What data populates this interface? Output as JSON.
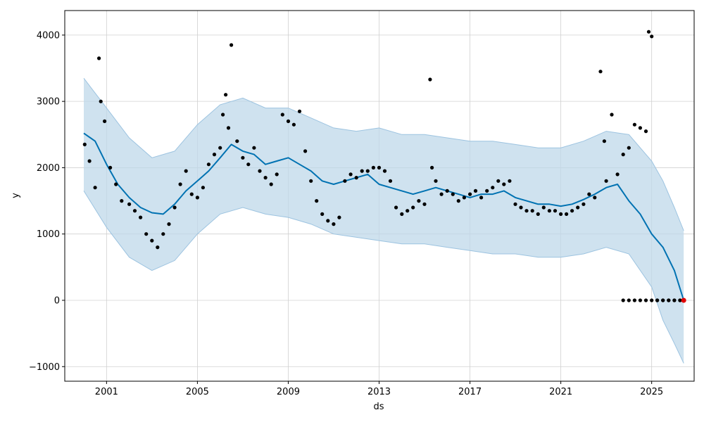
{
  "chart_data": {
    "type": "scatter",
    "title": "",
    "xlabel": "ds",
    "ylabel": "y",
    "xlim": [
      "1999-03-01",
      "2026-11-15"
    ],
    "ylim": [
      -1220,
      4370
    ],
    "grid": true,
    "x_ticks": [
      "2001",
      "2005",
      "2009",
      "2013",
      "2017",
      "2021",
      "2025"
    ],
    "y_ticks": [
      -1000,
      0,
      1000,
      2000,
      3000,
      4000
    ],
    "y_tick_labels": [
      "−1000",
      "0",
      "1000",
      "2000",
      "3000",
      "4000"
    ],
    "colors": {
      "observed": "#000000",
      "forecast": "#0072B2",
      "interval_fill": "#BFD8EA",
      "interval_edge": "#9CC3E0",
      "highlight": "#E00000"
    },
    "series": [
      {
        "kind": "forecast_line",
        "x": [
          "2000-01-01",
          "2000-07-01",
          "2001-01-01",
          "2001-07-01",
          "2002-01-01",
          "2002-07-01",
          "2003-01-01",
          "2003-07-01",
          "2004-01-01",
          "2004-07-01",
          "2005-01-01",
          "2005-07-01",
          "2006-01-01",
          "2006-07-01",
          "2007-01-01",
          "2007-07-01",
          "2008-01-01",
          "2008-07-01",
          "2009-01-01",
          "2009-07-01",
          "2010-01-01",
          "2010-07-01",
          "2011-01-01",
          "2011-07-01",
          "2012-01-01",
          "2012-07-01",
          "2013-01-01",
          "2013-07-01",
          "2014-01-01",
          "2014-07-01",
          "2015-01-01",
          "2015-07-01",
          "2016-01-01",
          "2016-07-01",
          "2017-01-01",
          "2017-07-01",
          "2018-01-01",
          "2018-07-01",
          "2019-01-01",
          "2019-07-01",
          "2020-01-01",
          "2020-07-01",
          "2021-01-01",
          "2021-07-01",
          "2022-01-01",
          "2022-07-01",
          "2023-01-01",
          "2023-07-01",
          "2024-01-01",
          "2024-07-01",
          "2025-01-01",
          "2025-07-01",
          "2026-01-01",
          "2026-06-01"
        ],
        "y": [
          2520,
          2400,
          2050,
          1750,
          1550,
          1400,
          1320,
          1300,
          1450,
          1650,
          1800,
          1950,
          2150,
          2350,
          2250,
          2200,
          2050,
          2100,
          2150,
          2050,
          1950,
          1800,
          1750,
          1800,
          1850,
          1900,
          1750,
          1700,
          1650,
          1600,
          1650,
          1700,
          1650,
          1600,
          1550,
          1600,
          1600,
          1650,
          1550,
          1500,
          1450,
          1450,
          1420,
          1450,
          1520,
          1600,
          1700,
          1750,
          1500,
          1300,
          1000,
          800,
          450,
          0
        ]
      },
      {
        "kind": "interval_upper",
        "x": [
          "2000-01-01",
          "2001-01-01",
          "2002-01-01",
          "2003-01-01",
          "2004-01-01",
          "2005-01-01",
          "2006-01-01",
          "2007-01-01",
          "2008-01-01",
          "2009-01-01",
          "2010-01-01",
          "2011-01-01",
          "2012-01-01",
          "2013-01-01",
          "2014-01-01",
          "2015-01-01",
          "2016-01-01",
          "2017-01-01",
          "2018-01-01",
          "2019-01-01",
          "2020-01-01",
          "2021-01-01",
          "2022-01-01",
          "2023-01-01",
          "2024-01-01",
          "2025-01-01",
          "2025-07-01",
          "2026-01-01",
          "2026-06-01"
        ],
        "y": [
          3350,
          2900,
          2450,
          2150,
          2250,
          2650,
          2950,
          3050,
          2900,
          2900,
          2750,
          2600,
          2550,
          2600,
          2500,
          2500,
          2450,
          2400,
          2400,
          2350,
          2300,
          2300,
          2400,
          2550,
          2500,
          2100,
          1800,
          1400,
          1050
        ]
      },
      {
        "kind": "interval_lower",
        "x": [
          "2000-01-01",
          "2001-01-01",
          "2002-01-01",
          "2003-01-01",
          "2004-01-01",
          "2005-01-01",
          "2006-01-01",
          "2007-01-01",
          "2008-01-01",
          "2009-01-01",
          "2010-01-01",
          "2011-01-01",
          "2012-01-01",
          "2013-01-01",
          "2014-01-01",
          "2015-01-01",
          "2016-01-01",
          "2017-01-01",
          "2018-01-01",
          "2019-01-01",
          "2020-01-01",
          "2021-01-01",
          "2022-01-01",
          "2023-01-01",
          "2024-01-01",
          "2025-01-01",
          "2025-07-01",
          "2026-01-01",
          "2026-06-01"
        ],
        "y": [
          1650,
          1100,
          650,
          450,
          600,
          1000,
          1300,
          1400,
          1300,
          1250,
          1150,
          1000,
          950,
          900,
          850,
          850,
          800,
          750,
          700,
          700,
          650,
          650,
          700,
          800,
          700,
          200,
          -300,
          -650,
          -950
        ]
      },
      {
        "kind": "observed_points",
        "x": [
          "2000-01-15",
          "2000-04-01",
          "2000-07-01",
          "2000-09-01",
          "2000-10-01",
          "2000-12-01",
          "2001-03-01",
          "2001-06-01",
          "2001-09-01",
          "2002-01-01",
          "2002-04-01",
          "2002-07-01",
          "2002-10-01",
          "2003-01-01",
          "2003-04-01",
          "2003-07-01",
          "2003-10-01",
          "2004-01-01",
          "2004-04-01",
          "2004-07-01",
          "2004-10-01",
          "2005-01-01",
          "2005-04-01",
          "2005-07-01",
          "2005-10-01",
          "2006-01-01",
          "2006-02-15",
          "2006-04-01",
          "2006-05-15",
          "2006-07-01",
          "2006-10-01",
          "2007-01-01",
          "2007-04-01",
          "2007-07-01",
          "2007-10-01",
          "2008-01-01",
          "2008-04-01",
          "2008-07-01",
          "2008-10-01",
          "2009-01-01",
          "2009-04-01",
          "2009-07-01",
          "2009-10-01",
          "2010-01-01",
          "2010-04-01",
          "2010-07-01",
          "2010-10-01",
          "2011-01-01",
          "2011-04-01",
          "2011-07-01",
          "2011-10-01",
          "2012-01-01",
          "2012-04-01",
          "2012-07-01",
          "2012-10-01",
          "2013-01-01",
          "2013-04-01",
          "2013-07-01",
          "2013-10-01",
          "2014-01-01",
          "2014-04-01",
          "2014-07-01",
          "2014-10-01",
          "2015-01-01",
          "2015-04-01",
          "2015-05-01",
          "2015-07-01",
          "2015-10-01",
          "2016-01-01",
          "2016-04-01",
          "2016-07-01",
          "2016-10-01",
          "2017-01-01",
          "2017-04-01",
          "2017-07-01",
          "2017-10-01",
          "2018-01-01",
          "2018-04-01",
          "2018-07-01",
          "2018-10-01",
          "2019-01-01",
          "2019-04-01",
          "2019-07-01",
          "2019-10-01",
          "2020-01-01",
          "2020-04-01",
          "2020-07-01",
          "2020-10-01",
          "2021-01-01",
          "2021-04-01",
          "2021-07-01",
          "2021-10-01",
          "2022-01-01",
          "2022-04-01",
          "2022-07-01",
          "2022-10-01",
          "2022-12-01",
          "2023-01-01",
          "2023-04-01",
          "2023-07-01",
          "2023-10-01",
          "2024-01-01",
          "2024-04-01",
          "2024-07-01",
          "2024-10-01",
          "2024-11-15",
          "2025-01-01",
          "2025-04-01",
          "2025-07-01",
          "2025-10-01",
          "2026-01-01",
          "2026-04-01"
        ],
        "y": [
          2350,
          2100,
          1700,
          3650,
          3000,
          2700,
          2000,
          1750,
          1500,
          1450,
          1350,
          1250,
          1000,
          900,
          800,
          1000,
          1150,
          1400,
          1750,
          1950,
          1600,
          1550,
          1700,
          2050,
          2200,
          2300,
          2800,
          3100,
          2600,
          3850,
          2400,
          2150,
          2050,
          2300,
          1950,
          1850,
          1750,
          1900,
          2800,
          2700,
          2650,
          2850,
          2250,
          1800,
          1500,
          1300,
          1200,
          1150,
          1250,
          1800,
          1900,
          1850,
          1950,
          1950,
          2000,
          2000,
          1950,
          1800,
          1400,
          1300,
          1350,
          1400,
          1500,
          1450,
          3330,
          2000,
          1800,
          1600,
          1650,
          1600,
          1500,
          1550,
          1600,
          1650,
          1550,
          1650,
          1700,
          1800,
          1750,
          1800,
          1450,
          1400,
          1350,
          1350,
          1300,
          1400,
          1350,
          1350,
          1300,
          1300,
          1350,
          1400,
          1450,
          1600,
          1550,
          3450,
          2400,
          1800,
          2800,
          1900,
          2200,
          2300,
          2650,
          2600,
          2550,
          4050,
          3980,
          0,
          0,
          0,
          0,
          0
        ]
      },
      {
        "kind": "observed_zero_points",
        "x": [
          "2023-10-01",
          "2024-01-01",
          "2024-04-01",
          "2024-07-01",
          "2024-10-01",
          "2025-01-01",
          "2025-04-01",
          "2025-07-01",
          "2025-10-01",
          "2026-01-01",
          "2026-04-01"
        ],
        "y": [
          0,
          0,
          0,
          0,
          0,
          0,
          0,
          0,
          0,
          0,
          0
        ]
      },
      {
        "kind": "highlight_point",
        "x": [
          "2026-06-01"
        ],
        "y": [
          0
        ]
      }
    ]
  }
}
